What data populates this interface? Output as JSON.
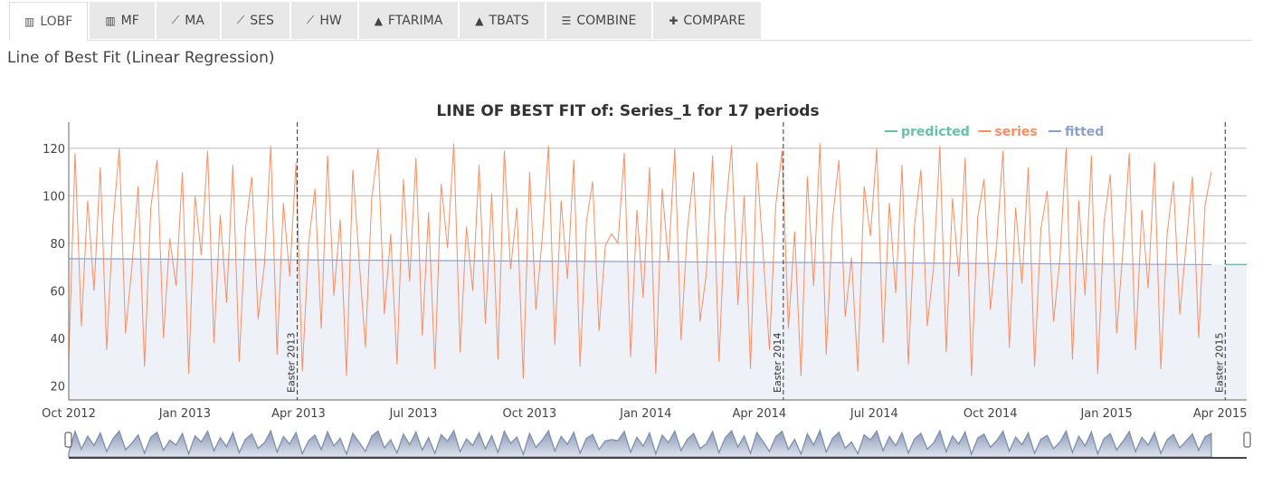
{
  "tabs": [
    {
      "label": "LOBF",
      "icon": "bar-chart-icon",
      "glyph": "▥"
    },
    {
      "label": "MF",
      "icon": "bar-chart-icon",
      "glyph": "▥"
    },
    {
      "label": "MA",
      "icon": "line-chart-icon",
      "glyph": "⟋"
    },
    {
      "label": "SES",
      "icon": "line-chart-icon",
      "glyph": "⟋"
    },
    {
      "label": "HW",
      "icon": "line-chart-icon",
      "glyph": "⟋"
    },
    {
      "label": "FTARIMA",
      "icon": "area-chart-icon",
      "glyph": "▲"
    },
    {
      "label": "TBATS",
      "icon": "area-chart-icon",
      "glyph": "▲"
    },
    {
      "label": "COMBINE",
      "icon": "sliders-icon",
      "glyph": "☰"
    },
    {
      "label": "COMPARE",
      "icon": "puzzle-icon",
      "glyph": "✚"
    }
  ],
  "subtitle": "Line of Best Fit (Linear Regression)",
  "chart_data": {
    "type": "line",
    "title": "LINE OF BEST FIT of: Series_1 for 17 periods",
    "ylim": [
      14,
      131
    ],
    "yticks": [
      20,
      40,
      60,
      80,
      100,
      120
    ],
    "xrange": [
      "2012-10-01",
      "2015-04-22"
    ],
    "xticks": [
      {
        "date": "2012-10-01",
        "label": "Oct 2012"
      },
      {
        "date": "2013-01-01",
        "label": "Jan 2013"
      },
      {
        "date": "2013-04-01",
        "label": "Apr 2013"
      },
      {
        "date": "2013-07-01",
        "label": "Jul 2013"
      },
      {
        "date": "2013-10-01",
        "label": "Oct 2013"
      },
      {
        "date": "2014-01-01",
        "label": "Jan 2014"
      },
      {
        "date": "2014-04-01",
        "label": "Apr 2014"
      },
      {
        "date": "2014-07-01",
        "label": "Jul 2014"
      },
      {
        "date": "2014-10-01",
        "label": "Oct 2014"
      },
      {
        "date": "2015-01-01",
        "label": "Jan 2015"
      },
      {
        "date": "2015-04-01",
        "label": "Apr 2015"
      }
    ],
    "legend": [
      {
        "name": "predicted",
        "color": "#66c2a5"
      },
      {
        "name": "series",
        "color": "#fc8d62"
      },
      {
        "name": "fitted",
        "color": "#8da0cb"
      }
    ],
    "legend_position": "top-right",
    "events": [
      {
        "date": "2013-03-31",
        "label": "Easter 2013"
      },
      {
        "date": "2014-04-20",
        "label": "Easter 2014"
      },
      {
        "date": "2015-04-05",
        "label": "Easter 2015"
      }
    ],
    "series": {
      "start": "2012-10-01",
      "step_days": 5,
      "values": [
        30,
        118,
        45,
        98,
        60,
        112,
        35,
        88,
        120,
        42,
        70,
        104,
        28,
        95,
        115,
        40,
        82,
        62,
        110,
        25,
        100,
        75,
        119,
        38,
        92,
        55,
        113,
        30,
        86,
        108,
        48,
        71,
        121,
        33,
        97,
        66,
        114,
        26,
        80,
        103,
        44,
        117,
        58,
        90,
        24,
        111,
        73,
        36,
        99,
        120,
        50,
        84,
        29,
        107,
        64,
        116,
        41,
        93,
        27,
        105,
        78,
        122,
        34,
        87,
        60,
        113,
        46,
        101,
        31,
        119,
        69,
        95,
        23,
        110,
        52,
        82,
        121,
        37,
        98,
        65,
        115,
        28,
        89,
        106,
        43,
        79,
        84,
        80,
        118,
        32,
        94,
        57,
        112,
        25,
        103,
        72,
        120,
        39,
        86,
        110,
        47,
        67,
        117,
        30,
        92,
        121,
        54,
        100,
        27,
        114,
        76,
        35,
        96,
        119,
        44,
        85,
        24,
        108,
        62,
        122,
        33,
        90,
        115,
        49,
        74,
        26,
        104,
        83,
        120,
        38,
        97,
        59,
        113,
        29,
        88,
        111,
        45,
        70,
        121,
        34,
        99,
        66,
        116,
        24,
        91,
        107,
        52,
        80,
        119,
        36,
        95,
        63,
        112,
        28,
        86,
        102,
        47,
        73,
        120,
        31,
        98,
        58,
        117,
        25,
        89,
        109,
        42,
        77,
        118,
        35,
        94,
        61,
        114,
        27,
        84,
        106,
        50,
        79,
        108,
        40,
        96,
        110
      ]
    },
    "fitted": {
      "start_value": 73.5,
      "end_value": 71.0
    },
    "predicted": {
      "start": "2015-04-05",
      "end": "2015-04-22",
      "value": 71.0
    }
  }
}
